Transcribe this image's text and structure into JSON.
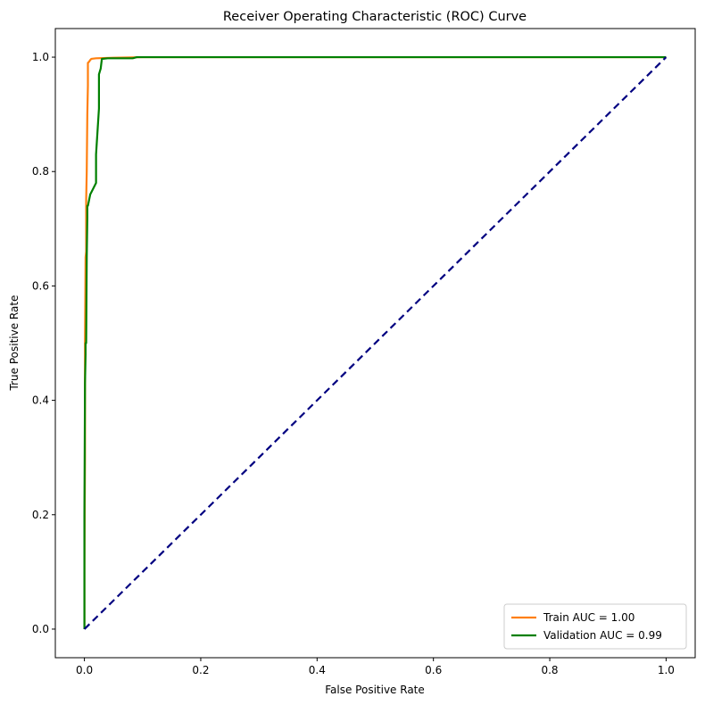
{
  "chart_data": {
    "type": "line",
    "title": "Receiver Operating Characteristic (ROC) Curve",
    "xlabel": "False Positive Rate",
    "ylabel": "True Positive Rate",
    "xlim": [
      -0.05,
      1.05
    ],
    "ylim": [
      -0.05,
      1.05
    ],
    "xticks": [
      0.0,
      0.2,
      0.4,
      0.6,
      0.8,
      1.0
    ],
    "yticks": [
      0.0,
      0.2,
      0.4,
      0.6,
      0.8,
      1.0
    ],
    "xtick_labels": [
      "0.0",
      "0.2",
      "0.4",
      "0.6",
      "0.8",
      "1.0"
    ],
    "ytick_labels": [
      "0.0",
      "0.2",
      "0.4",
      "0.6",
      "0.8",
      "1.0"
    ],
    "grid": false,
    "legend_position": "lower-right",
    "series": [
      {
        "name": "Train AUC = 1.00",
        "color": "#ff7f0e",
        "dash": "solid",
        "x": [
          0.0,
          0.0,
          0.001,
          0.001,
          0.002,
          0.003,
          0.003,
          0.004,
          0.005,
          0.006,
          0.006,
          0.008,
          0.01,
          0.012,
          0.02,
          0.05,
          0.1,
          1.0
        ],
        "y": [
          0.0,
          0.1,
          0.3,
          0.5,
          0.65,
          0.66,
          0.75,
          0.8,
          0.9,
          0.95,
          0.99,
          0.992,
          0.995,
          0.997,
          0.998,
          0.999,
          1.0,
          1.0
        ]
      },
      {
        "name": "Validation AUC = 0.99",
        "color": "#008000",
        "dash": "solid",
        "x": [
          0.0,
          0.0,
          0.001,
          0.002,
          0.002,
          0.003,
          0.004,
          0.005,
          0.005,
          0.006,
          0.008,
          0.01,
          0.015,
          0.02,
          0.02,
          0.025,
          0.025,
          0.028,
          0.03,
          0.04,
          0.06,
          0.083,
          0.09,
          0.2,
          1.0
        ],
        "y": [
          0.0,
          0.2,
          0.43,
          0.48,
          0.5,
          0.5,
          0.65,
          0.72,
          0.74,
          0.74,
          0.75,
          0.76,
          0.77,
          0.78,
          0.83,
          0.91,
          0.97,
          0.98,
          0.997,
          0.998,
          0.998,
          0.998,
          1.0,
          1.0,
          1.0
        ]
      },
      {
        "name": "",
        "color": "#000080",
        "dash": "dashed",
        "x": [
          0.0,
          1.0
        ],
        "y": [
          0.0,
          1.0
        ]
      }
    ],
    "legend_entries": [
      0,
      1
    ]
  }
}
